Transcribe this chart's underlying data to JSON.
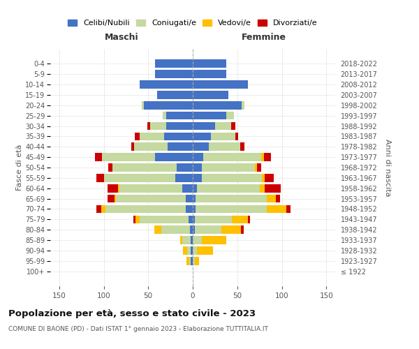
{
  "age_groups": [
    "100+",
    "95-99",
    "90-94",
    "85-89",
    "80-84",
    "75-79",
    "70-74",
    "65-69",
    "60-64",
    "55-59",
    "50-54",
    "45-49",
    "40-44",
    "35-39",
    "30-34",
    "25-29",
    "20-24",
    "15-19",
    "10-14",
    "5-9",
    "0-4"
  ],
  "birth_years": [
    "≤ 1922",
    "1923-1927",
    "1928-1932",
    "1933-1937",
    "1938-1942",
    "1943-1947",
    "1948-1952",
    "1953-1957",
    "1958-1962",
    "1963-1967",
    "1968-1972",
    "1973-1977",
    "1978-1982",
    "1983-1987",
    "1988-1992",
    "1993-1997",
    "1998-2002",
    "2003-2007",
    "2008-2012",
    "2013-2017",
    "2018-2022"
  ],
  "maschi": {
    "celibi": [
      0,
      2,
      2,
      2,
      3,
      5,
      8,
      8,
      12,
      20,
      18,
      42,
      28,
      32,
      30,
      30,
      55,
      40,
      60,
      42,
      42
    ],
    "coniugati": [
      0,
      2,
      4,
      10,
      32,
      55,
      90,
      78,
      70,
      80,
      72,
      60,
      38,
      28,
      18,
      4,
      2,
      0,
      0,
      0,
      0
    ],
    "vedovi": [
      0,
      3,
      5,
      2,
      8,
      4,
      5,
      2,
      2,
      0,
      0,
      0,
      0,
      0,
      0,
      0,
      0,
      0,
      0,
      0,
      0
    ],
    "divorziati": [
      0,
      0,
      0,
      0,
      0,
      3,
      5,
      8,
      12,
      8,
      5,
      8,
      3,
      5,
      3,
      0,
      0,
      0,
      0,
      0,
      0
    ]
  },
  "femmine": {
    "nubili": [
      0,
      0,
      0,
      0,
      2,
      2,
      3,
      3,
      5,
      10,
      10,
      12,
      18,
      20,
      25,
      38,
      55,
      40,
      62,
      38,
      38
    ],
    "coniugate": [
      0,
      2,
      5,
      10,
      30,
      42,
      80,
      80,
      70,
      68,
      60,
      65,
      35,
      28,
      18,
      8,
      3,
      0,
      0,
      0,
      0
    ],
    "vedove": [
      0,
      5,
      18,
      28,
      22,
      18,
      22,
      10,
      6,
      3,
      2,
      3,
      0,
      0,
      0,
      0,
      0,
      0,
      0,
      0,
      0
    ],
    "divorziate": [
      0,
      0,
      0,
      0,
      3,
      2,
      5,
      5,
      18,
      10,
      5,
      8,
      5,
      3,
      5,
      0,
      0,
      0,
      0,
      0,
      0
    ]
  },
  "colors": {
    "celibi_nubili": "#4472c4",
    "coniugati": "#c5d9a0",
    "vedovi": "#ffc000",
    "divorziati": "#cc0000"
  },
  "xlim": 160,
  "title": "Popolazione per età, sesso e stato civile - 2023",
  "subtitle": "COMUNE DI BAONE (PD) - Dati ISTAT 1° gennaio 2023 - Elaborazione TUTTITALIA.IT",
  "xlabel_left": "Maschi",
  "xlabel_right": "Femmine",
  "ylabel_left": "Fasce di età",
  "ylabel_right": "Anni di nascita",
  "bg_color": "#ffffff",
  "grid_color": "#cccccc"
}
